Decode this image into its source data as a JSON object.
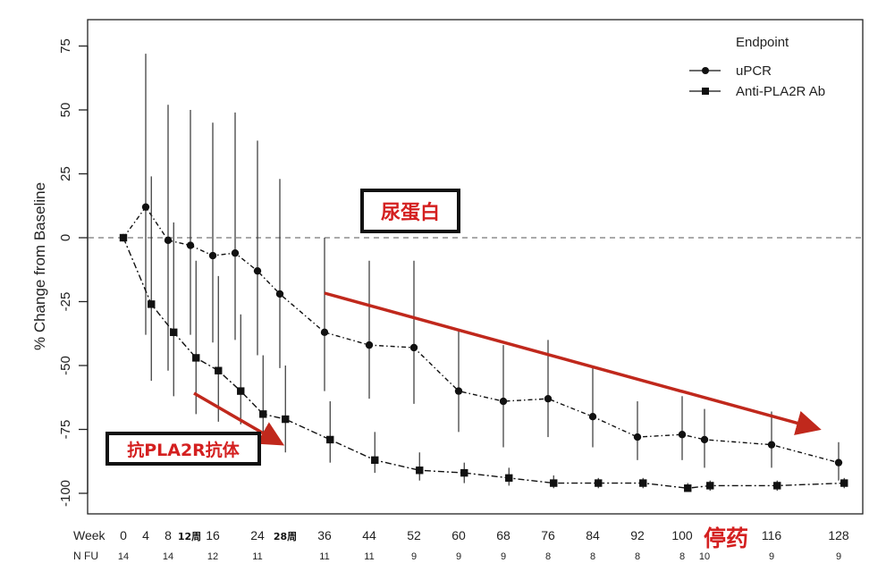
{
  "chart_data": {
    "type": "line",
    "ylabel": "% Change from Baseline",
    "ylim": [
      -105,
      80
    ],
    "xlim": [
      -4,
      132
    ],
    "yticks": [
      75,
      50,
      25,
      0,
      -25,
      -50,
      -75,
      -100
    ],
    "ytick_labels": [
      "75",
      "50",
      "25",
      "0",
      "-25",
      "-50",
      "-75",
      "-100"
    ],
    "reference_line_y": 0,
    "legend": {
      "title": "Endpoint",
      "position": "top-right"
    },
    "week_row_label": "Week",
    "nfu_row_label": "N FU",
    "week_ticks": [
      {
        "x": 0,
        "label": "0"
      },
      {
        "x": 4,
        "label": "4"
      },
      {
        "x": 8,
        "label": "8"
      },
      {
        "x": 16,
        "label": "16"
      },
      {
        "x": 24,
        "label": "24"
      },
      {
        "x": 36,
        "label": "36"
      },
      {
        "x": 44,
        "label": "44"
      },
      {
        "x": 52,
        "label": "52"
      },
      {
        "x": 60,
        "label": "60"
      },
      {
        "x": 68,
        "label": "68"
      },
      {
        "x": 76,
        "label": "76"
      },
      {
        "x": 84,
        "label": "84"
      },
      {
        "x": 92,
        "label": "92"
      },
      {
        "x": 100,
        "label": "100"
      },
      {
        "x": 116,
        "label": "116"
      },
      {
        "x": 128,
        "label": "128"
      }
    ],
    "nfu": [
      {
        "x": 0,
        "label": "14"
      },
      {
        "x": 8,
        "label": "14"
      },
      {
        "x": 16,
        "label": "12"
      },
      {
        "x": 24,
        "label": "11"
      },
      {
        "x": 36,
        "label": "11"
      },
      {
        "x": 44,
        "label": "11"
      },
      {
        "x": 52,
        "label": "9"
      },
      {
        "x": 60,
        "label": "9"
      },
      {
        "x": 68,
        "label": "9"
      },
      {
        "x": 76,
        "label": "8"
      },
      {
        "x": 84,
        "label": "8"
      },
      {
        "x": 92,
        "label": "8"
      },
      {
        "x": 100,
        "label": "8"
      },
      {
        "x": 104,
        "label": "10"
      },
      {
        "x": 116,
        "label": "9"
      },
      {
        "x": 128,
        "label": "9"
      }
    ],
    "series": [
      {
        "name": "uPCR",
        "marker": "circle",
        "line_style": "dotted-dashed",
        "color": "#111111",
        "points": [
          {
            "x": 0,
            "y": 0,
            "lo": 0,
            "hi": 0
          },
          {
            "x": 4,
            "y": 12,
            "lo": -38,
            "hi": 72
          },
          {
            "x": 8,
            "y": -1,
            "lo": -52,
            "hi": 52
          },
          {
            "x": 12,
            "y": -3,
            "lo": -38,
            "hi": 50
          },
          {
            "x": 16,
            "y": -7,
            "lo": -41,
            "hi": 45
          },
          {
            "x": 20,
            "y": -6,
            "lo": -40,
            "hi": 49
          },
          {
            "x": 24,
            "y": -13,
            "lo": -46,
            "hi": 38
          },
          {
            "x": 28,
            "y": -22,
            "lo": -51,
            "hi": 23
          },
          {
            "x": 36,
            "y": -37,
            "lo": -60,
            "hi": 0
          },
          {
            "x": 44,
            "y": -42,
            "lo": -63,
            "hi": -9
          },
          {
            "x": 52,
            "y": -43,
            "lo": -65,
            "hi": -9
          },
          {
            "x": 60,
            "y": -60,
            "lo": -76,
            "hi": -36
          },
          {
            "x": 68,
            "y": -64,
            "lo": -82,
            "hi": -42
          },
          {
            "x": 76,
            "y": -63,
            "lo": -78,
            "hi": -40
          },
          {
            "x": 84,
            "y": -70,
            "lo": -82,
            "hi": -50
          },
          {
            "x": 92,
            "y": -78,
            "lo": -87,
            "hi": -64
          },
          {
            "x": 100,
            "y": -77,
            "lo": -87,
            "hi": -62
          },
          {
            "x": 104,
            "y": -79,
            "lo": -90,
            "hi": -67
          },
          {
            "x": 116,
            "y": -81,
            "lo": -90,
            "hi": -68
          },
          {
            "x": 128,
            "y": -88,
            "lo": -95,
            "hi": -80
          }
        ]
      },
      {
        "name": "Anti-PLA2R Ab",
        "marker": "square",
        "line_style": "dash-dot",
        "color": "#111111",
        "points": [
          {
            "x": 0,
            "y": 0,
            "lo": 0,
            "hi": 0
          },
          {
            "x": 5,
            "y": -26,
            "lo": -56,
            "hi": 24
          },
          {
            "x": 9,
            "y": -37,
            "lo": -62,
            "hi": 6
          },
          {
            "x": 13,
            "y": -47,
            "lo": -69,
            "hi": -9
          },
          {
            "x": 17,
            "y": -52,
            "lo": -72,
            "hi": -15
          },
          {
            "x": 21,
            "y": -60,
            "lo": -73,
            "hi": -30
          },
          {
            "x": 25,
            "y": -69,
            "lo": -80,
            "hi": -46
          },
          {
            "x": 29,
            "y": -71,
            "lo": -84,
            "hi": -50
          },
          {
            "x": 37,
            "y": -79,
            "lo": -88,
            "hi": -64
          },
          {
            "x": 45,
            "y": -87,
            "lo": -92,
            "hi": -76
          },
          {
            "x": 53,
            "y": -91,
            "lo": -95,
            "hi": -84
          },
          {
            "x": 61,
            "y": -92,
            "lo": -96,
            "hi": -88
          },
          {
            "x": 69,
            "y": -94,
            "lo": -97,
            "hi": -90
          },
          {
            "x": 77,
            "y": -96,
            "lo": -98,
            "hi": -93
          },
          {
            "x": 85,
            "y": -96,
            "lo": -98,
            "hi": -94
          },
          {
            "x": 93,
            "y": -96,
            "lo": -98,
            "hi": -94
          },
          {
            "x": 101,
            "y": -98,
            "lo": -99,
            "hi": -96
          },
          {
            "x": 105,
            "y": -97,
            "lo": -99,
            "hi": -95
          },
          {
            "x": 117,
            "y": -97,
            "lo": -99,
            "hi": -95
          },
          {
            "x": 129,
            "y": -96,
            "lo": -98,
            "hi": -94
          }
        ]
      }
    ],
    "annotations": {
      "proteinuria_box": "尿蛋白",
      "antibody_box": "抗PLA2R抗体",
      "stop_drug": "停药",
      "week12_label": "12周",
      "week28_label": "28周"
    }
  }
}
